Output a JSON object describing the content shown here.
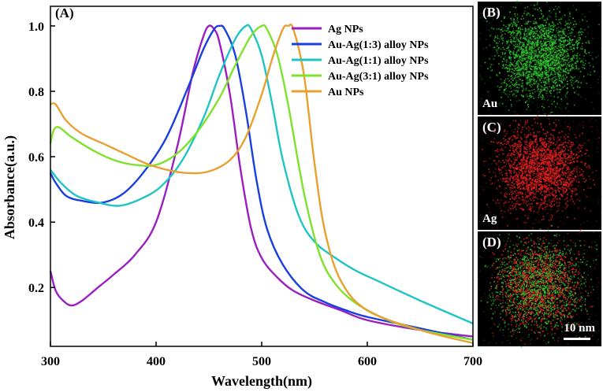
{
  "chart_data": {
    "type": "line",
    "panel_label": "(A)",
    "xlabel": "Wavelength(nm)",
    "ylabel": "Absorbance(a.u.)",
    "xlim": [
      300,
      700
    ],
    "ylim": [
      0.02,
      1.06
    ],
    "xticks": [
      300,
      400,
      500,
      600,
      700
    ],
    "yticks": [
      0.2,
      0.4,
      0.6,
      0.8,
      1.0
    ],
    "ytick_labels": [
      "0.2",
      "0.4",
      "0.6",
      "0.8",
      "1.0"
    ],
    "legend_position": "top-right",
    "series": [
      {
        "name": "Ag NPs",
        "color": "#9a1fc0",
        "x": [
          300,
          305,
          312,
          320,
          330,
          345,
          360,
          380,
          400,
          420,
          435,
          445,
          450,
          455,
          460,
          470,
          480,
          490,
          500,
          515,
          530,
          550,
          575,
          600,
          650,
          700
        ],
        "y": [
          0.25,
          0.19,
          0.16,
          0.145,
          0.16,
          0.2,
          0.24,
          0.3,
          0.4,
          0.63,
          0.86,
          0.97,
          1.0,
          0.99,
          0.95,
          0.79,
          0.56,
          0.38,
          0.29,
          0.23,
          0.19,
          0.16,
          0.13,
          0.1,
          0.07,
          0.05
        ]
      },
      {
        "name": "Au-Ag(1:3) alloy NPs",
        "color": "#1a3fe0",
        "x": [
          300,
          305,
          315,
          330,
          350,
          370,
          390,
          410,
          430,
          445,
          455,
          460,
          465,
          475,
          485,
          495,
          505,
          520,
          540,
          560,
          580,
          600,
          650,
          700
        ],
        "y": [
          0.55,
          0.52,
          0.48,
          0.465,
          0.46,
          0.49,
          0.56,
          0.66,
          0.81,
          0.93,
          0.99,
          1.0,
          0.99,
          0.91,
          0.74,
          0.53,
          0.38,
          0.27,
          0.19,
          0.155,
          0.13,
          0.11,
          0.075,
          0.04
        ]
      },
      {
        "name": "Au-Ag(1:1) alloy NPs",
        "color": "#1fc4c4",
        "x": [
          300,
          310,
          325,
          345,
          365,
          385,
          405,
          425,
          445,
          460,
          475,
          485,
          490,
          500,
          510,
          520,
          535,
          550,
          570,
          590,
          610,
          650,
          700
        ],
        "y": [
          0.56,
          0.52,
          0.48,
          0.46,
          0.45,
          0.47,
          0.51,
          0.59,
          0.72,
          0.85,
          0.96,
          1.0,
          0.99,
          0.91,
          0.76,
          0.59,
          0.42,
          0.34,
          0.29,
          0.25,
          0.22,
          0.16,
          0.09
        ]
      },
      {
        "name": "Au-Ag(3:1) alloy NPs",
        "color": "#7fe22a",
        "x": [
          300,
          303,
          308,
          320,
          340,
          360,
          380,
          400,
          420,
          440,
          460,
          475,
          490,
          500,
          505,
          515,
          525,
          540,
          555,
          570,
          590,
          620,
          650,
          700
        ],
        "y": [
          0.64,
          0.68,
          0.69,
          0.66,
          0.62,
          0.59,
          0.575,
          0.575,
          0.61,
          0.68,
          0.78,
          0.88,
          0.97,
          1.0,
          0.99,
          0.91,
          0.76,
          0.49,
          0.3,
          0.21,
          0.15,
          0.1,
          0.07,
          0.04
        ]
      },
      {
        "name": "Au NPs",
        "color": "#e8a030",
        "x": [
          300,
          305,
          315,
          330,
          350,
          370,
          390,
          410,
          430,
          450,
          470,
          485,
          500,
          510,
          520,
          525,
          530,
          540,
          550,
          560,
          575,
          600,
          650,
          700
        ],
        "y": [
          0.76,
          0.76,
          0.71,
          0.67,
          0.64,
          0.61,
          0.58,
          0.56,
          0.55,
          0.555,
          0.59,
          0.66,
          0.79,
          0.9,
          0.99,
          1.0,
          0.99,
          0.85,
          0.58,
          0.37,
          0.22,
          0.13,
          0.07,
          0.03
        ]
      }
    ]
  },
  "edx_panels": [
    {
      "label": "(B)",
      "element": "Au",
      "color": "#2ec52e"
    },
    {
      "label": "(C)",
      "element": "Ag",
      "color": "#e82020"
    },
    {
      "label": "(D)",
      "scale_bar": "10 nm",
      "colors": [
        "#2ec52e",
        "#e82020"
      ]
    }
  ]
}
